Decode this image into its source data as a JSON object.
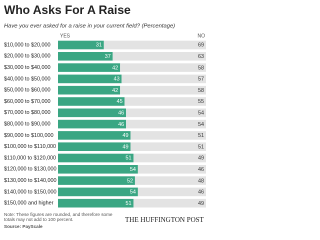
{
  "chart_data": {
    "type": "stacked-bar-horizontal",
    "title": "Who Asks For A Raise",
    "subtitle": "Have you ever asked for a raise in your current field? (Percentage)",
    "categories": [
      "$10,000 to $20,000",
      "$20,000 to $30,000",
      "$30,000 to $40,000",
      "$40,000 to $50,000",
      "$50,000 to $60,000",
      "$60,000 to $70,000",
      "$70,000 to $80,000",
      "$80,000 to $90,000",
      "$90,000 to $100,000",
      "$100,000 to $110,000",
      "$110,000 to $120,000",
      "$120,000 to $130,000",
      "$130,000 to $140,000",
      "$140,000 to $150,000",
      "$150,000 and higher"
    ],
    "series": [
      {
        "name": "YES",
        "color": "#3aa683",
        "values": [
          31,
          37,
          42,
          43,
          42,
          45,
          46,
          46,
          49,
          49,
          51,
          54,
          52,
          54,
          51
        ]
      },
      {
        "name": "NO",
        "color": "#e3e3e3",
        "values": [
          69,
          63,
          58,
          57,
          58,
          55,
          54,
          54,
          51,
          51,
          49,
          46,
          48,
          46,
          49
        ]
      }
    ],
    "xlim": [
      0,
      100
    ],
    "note": "Note: These figures are rounded, and therefore some totals may not add to 100 percent.",
    "source": "Source: PayScale",
    "credit": "THE HUFFINGTON POST"
  }
}
